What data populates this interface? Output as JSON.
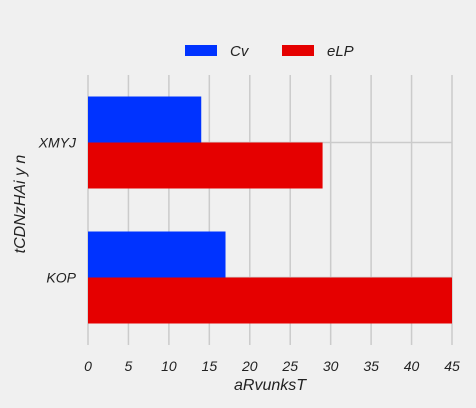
{
  "chart_data": {
    "type": "bar",
    "orientation": "horizontal",
    "title": "",
    "xlabel": "aRvunksT",
    "ylabel": "tCDNzHAi y n",
    "categories": [
      "XMYJ",
      "KOP"
    ],
    "series": [
      {
        "name": "Cv",
        "color": "#0033ff",
        "values": [
          14,
          17
        ]
      },
      {
        "name": "eLP",
        "color": "#e50000",
        "values": [
          29,
          45
        ]
      }
    ],
    "xlim": [
      0,
      45
    ],
    "xticks": [
      0,
      5,
      10,
      15,
      20,
      25,
      30,
      35,
      40,
      45
    ],
    "grid": true,
    "legend_position": "top-center"
  }
}
